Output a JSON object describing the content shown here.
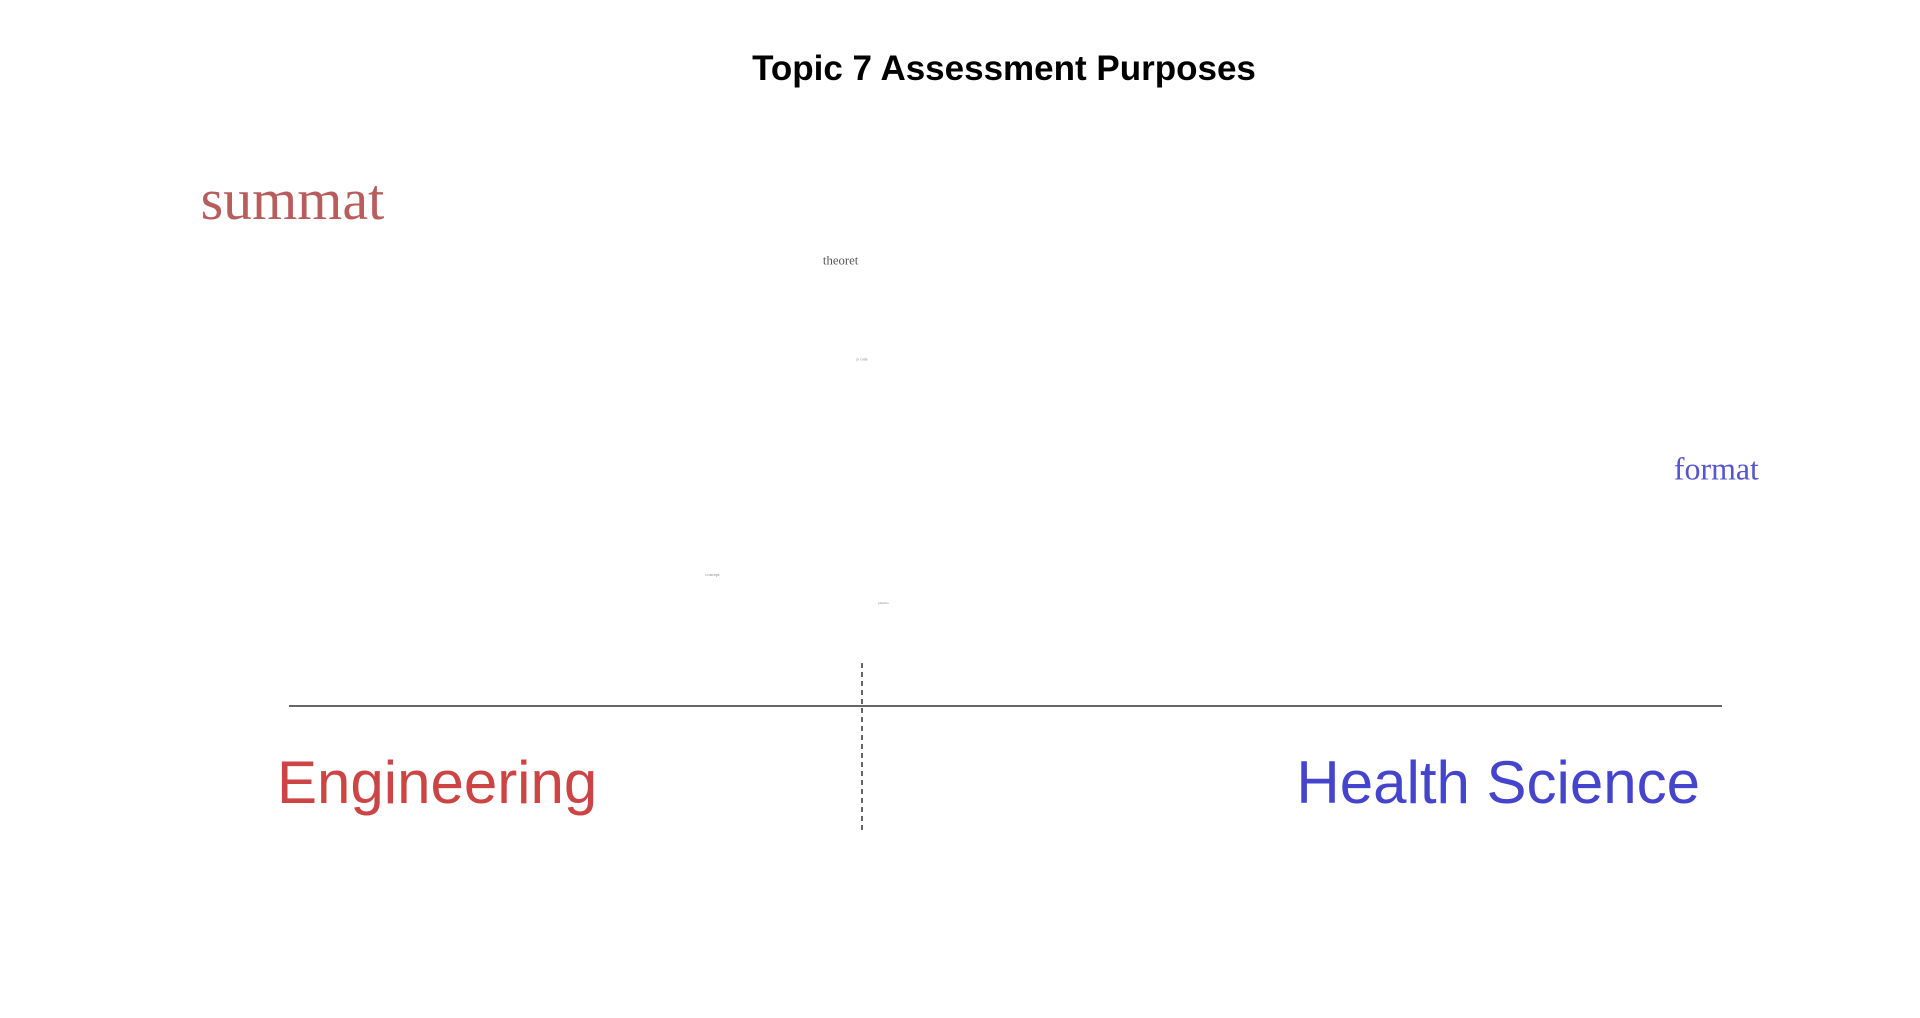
{
  "chart_data": {
    "type": "scatter",
    "title": "Topic 7 Assessment Purposes",
    "xlabel": "",
    "ylabel": "",
    "xlim": [
      -1,
      1
    ],
    "ylim": [
      0,
      1
    ],
    "grid": false,
    "groups": [
      {
        "name": "Engineering",
        "color": "#cc4444"
      },
      {
        "name": "Health Science",
        "color": "#4444cc"
      }
    ],
    "words": [
      {
        "text": "summat",
        "x": -0.8,
        "y": 0.86,
        "size": 1.0,
        "color": "#b85c5c"
      },
      {
        "text": "theoret",
        "x": -0.03,
        "y": 0.78,
        "size": 0.22,
        "color": "#555555"
      },
      {
        "text": "js code",
        "x": 0.0,
        "y": 0.61,
        "size": 0.07,
        "color": "#888888"
      },
      {
        "text": "format",
        "x": 1.2,
        "y": 0.4,
        "size": 0.55,
        "color": "#5555cc"
      },
      {
        "text": "concept",
        "x": -0.21,
        "y": 0.23,
        "size": 0.08,
        "color": "#888888"
      },
      {
        "text": "pharma",
        "x": 0.03,
        "y": 0.18,
        "size": 0.06,
        "color": "#888888"
      }
    ]
  }
}
